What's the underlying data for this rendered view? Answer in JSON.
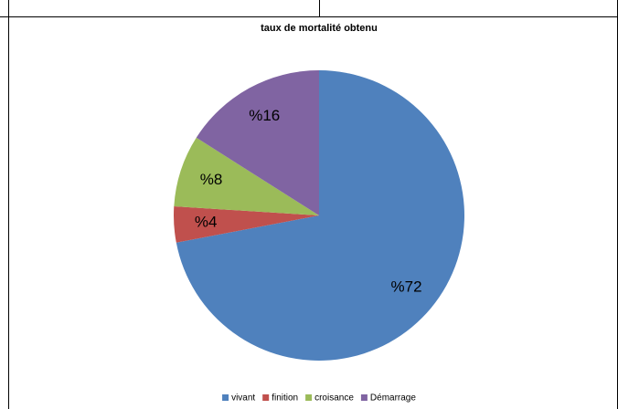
{
  "chart_data": {
    "type": "pie",
    "title": "taux de mortalité obtenu",
    "categories": [
      "vivant",
      "finition",
      "croisance",
      "Démarrage"
    ],
    "values": [
      72,
      4,
      8,
      16
    ],
    "value_labels": [
      "%72",
      "%4",
      "%8",
      "%16"
    ],
    "colors": [
      "#4f81bd",
      "#c0504d",
      "#9bbb59",
      "#8064a2"
    ],
    "legend": "bottom"
  }
}
